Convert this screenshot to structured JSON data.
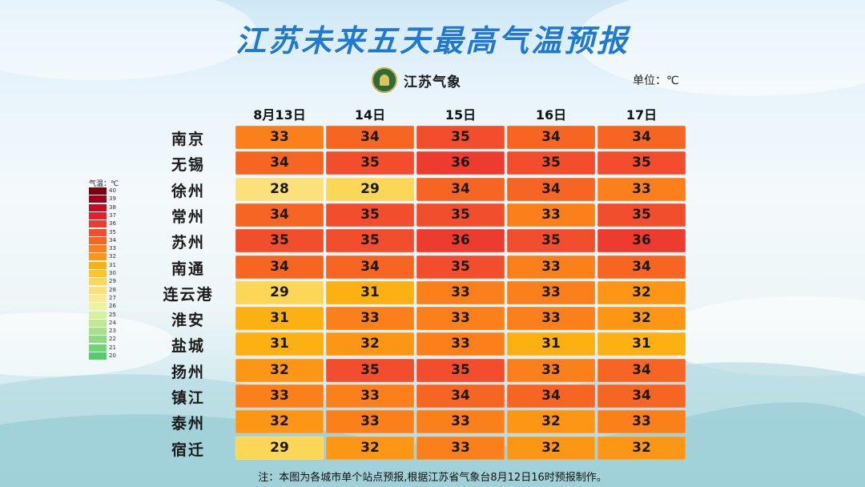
{
  "title": "江苏未来五天最高气温预报",
  "logo_text": "江苏气象",
  "unit_label": "单位：℃",
  "legend_title": "气温：℃",
  "footnote": "注：本图为各城市单个站点预报,根据江苏省气象台8月12日16时预报制作。",
  "chart_data": {
    "type": "table",
    "title": "江苏未来五天最高气温预报",
    "unit": "℃",
    "columns": [
      "8月13日",
      "14日",
      "15日",
      "16日",
      "17日"
    ],
    "rows": [
      {
        "city": "南京",
        "values": [
          33,
          34,
          35,
          34,
          34
        ]
      },
      {
        "city": "无锡",
        "values": [
          34,
          35,
          36,
          35,
          35
        ]
      },
      {
        "city": "徐州",
        "values": [
          28,
          29,
          34,
          34,
          33
        ]
      },
      {
        "city": "常州",
        "values": [
          34,
          35,
          35,
          33,
          35
        ]
      },
      {
        "city": "苏州",
        "values": [
          35,
          35,
          36,
          35,
          36
        ]
      },
      {
        "city": "南通",
        "values": [
          34,
          34,
          35,
          33,
          34
        ]
      },
      {
        "city": "连云港",
        "values": [
          29,
          31,
          33,
          33,
          32
        ]
      },
      {
        "city": "淮安",
        "values": [
          31,
          33,
          33,
          33,
          32
        ]
      },
      {
        "city": "盐城",
        "values": [
          31,
          32,
          33,
          31,
          31
        ]
      },
      {
        "city": "扬州",
        "values": [
          32,
          35,
          35,
          33,
          34
        ]
      },
      {
        "city": "镇江",
        "values": [
          33,
          33,
          34,
          34,
          34
        ]
      },
      {
        "city": "泰州",
        "values": [
          32,
          33,
          33,
          32,
          33
        ]
      },
      {
        "city": "宿迁",
        "values": [
          29,
          32,
          33,
          32,
          32
        ]
      }
    ],
    "legend": [
      {
        "value": 40,
        "color": "#7a0010"
      },
      {
        "value": 39,
        "color": "#a0001a"
      },
      {
        "value": 38,
        "color": "#c40d22"
      },
      {
        "value": 37,
        "color": "#e0232a"
      },
      {
        "value": 36,
        "color": "#ee3b30"
      },
      {
        "value": 35,
        "color": "#f24d2c"
      },
      {
        "value": 34,
        "color": "#f76522"
      },
      {
        "value": 33,
        "color": "#fb7f1a"
      },
      {
        "value": 32,
        "color": "#fd9614"
      },
      {
        "value": 31,
        "color": "#fdb011"
      },
      {
        "value": 30,
        "color": "#fdc52a"
      },
      {
        "value": 29,
        "color": "#fcd656"
      },
      {
        "value": 28,
        "color": "#fce07a"
      },
      {
        "value": 27,
        "color": "#fbea92"
      },
      {
        "value": 26,
        "color": "#eef29a"
      },
      {
        "value": 25,
        "color": "#d6ef9a"
      },
      {
        "value": 24,
        "color": "#bfe993"
      },
      {
        "value": 23,
        "color": "#a6e28a"
      },
      {
        "value": 22,
        "color": "#8ddb80"
      },
      {
        "value": 21,
        "color": "#71d476"
      },
      {
        "value": 20,
        "color": "#54cc6c"
      }
    ]
  }
}
